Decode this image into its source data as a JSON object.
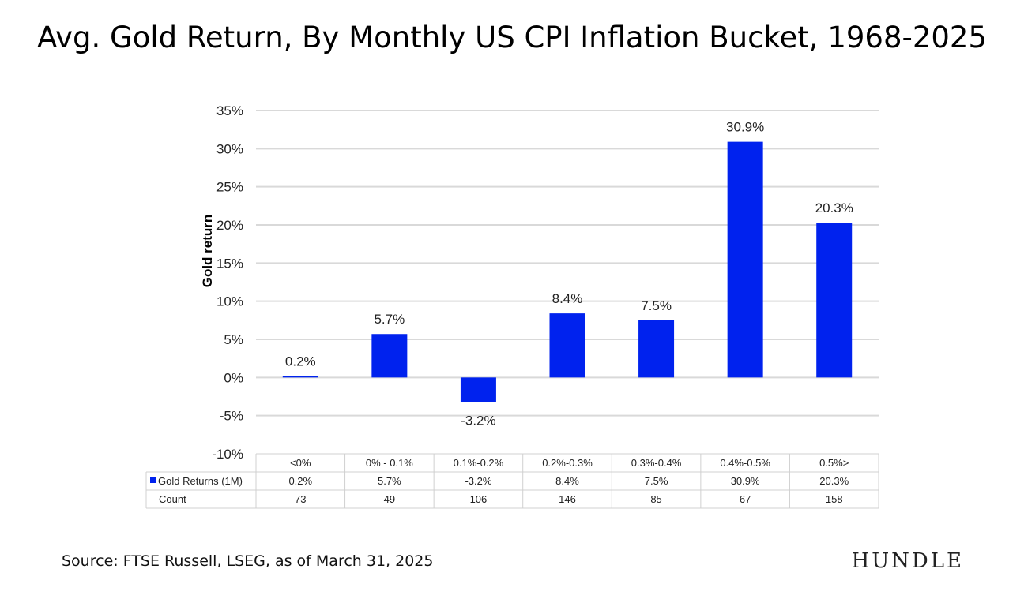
{
  "chart_data": {
    "type": "bar",
    "title": "Avg. Gold Return, By Monthly US CPI Inflation Bucket, 1968-2025",
    "ylabel": "Gold return",
    "xlabel": "",
    "categories": [
      "<0%",
      "0% - 0.1%",
      "0.1%-0.2%",
      "0.2%-0.3%",
      "0.3%-0.4%",
      "0.4%-0.5%",
      "0.5%>"
    ],
    "series": [
      {
        "name": "Gold Returns (1M)",
        "values": [
          0.2,
          5.7,
          -3.2,
          8.4,
          7.5,
          30.9,
          20.3
        ],
        "value_labels": [
          "0.2%",
          "5.7%",
          "-3.2%",
          "8.4%",
          "7.5%",
          "30.9%",
          "20.3%"
        ],
        "color": "#0022ee"
      }
    ],
    "ylim": [
      -10,
      35
    ],
    "yticks": [
      35,
      30,
      25,
      20,
      15,
      10,
      5,
      0,
      -5,
      -10
    ],
    "ytick_labels": [
      "35%",
      "30%",
      "25%",
      "20%",
      "15%",
      "10%",
      "5%",
      "0%",
      "-5%",
      "-10%"
    ],
    "grid": true,
    "data_table": {
      "rows": [
        {
          "label": "Gold Returns (1M)",
          "values": [
            "0.2%",
            "5.7%",
            "-3.2%",
            "8.4%",
            "7.5%",
            "30.9%",
            "20.3%"
          ]
        },
        {
          "label": "Count",
          "values": [
            "73",
            "49",
            "106",
            "146",
            "85",
            "67",
            "158"
          ]
        }
      ]
    }
  },
  "footer": {
    "source": "Source: FTSE Russell, LSEG, as of March 31, 2025",
    "brand": "HUNDLE"
  },
  "colors": {
    "bar": "#0022ee",
    "grid": "#d9d9d9",
    "table_border": "#d0d0d0"
  }
}
